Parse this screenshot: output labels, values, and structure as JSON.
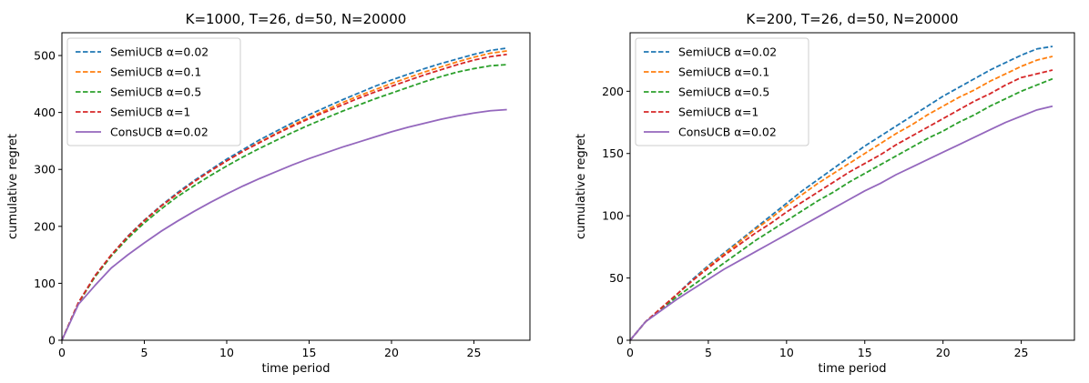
{
  "chart_data": [
    {
      "type": "line",
      "title": "K=1000, T=26, d=50, N=20000",
      "xlabel": "time period",
      "ylabel": "cumulative regret",
      "xlim": [
        0,
        28.4
      ],
      "ylim": [
        0,
        540
      ],
      "xticks": [
        "0",
        "5",
        "10",
        "15",
        "20",
        "25"
      ],
      "yticks": [
        "0",
        "100",
        "200",
        "300",
        "400",
        "500"
      ],
      "legend_position": "top-left",
      "grid": false,
      "x": [
        0,
        1,
        2,
        3,
        4,
        5,
        6,
        7,
        8,
        9,
        10,
        11,
        12,
        13,
        14,
        15,
        16,
        17,
        18,
        19,
        20,
        21,
        22,
        23,
        24,
        25,
        26,
        27
      ],
      "series": [
        {
          "name": "SemiUCB α=0.02",
          "color": "#1f77b4",
          "dash": "dashed",
          "values": [
            0,
            66,
            113,
            150,
            183,
            211,
            236,
            259,
            280,
            299,
            318,
            335,
            352,
            367,
            382,
            396,
            409,
            422,
            434,
            446,
            457,
            467,
            477,
            486,
            494,
            502,
            509,
            513
          ]
        },
        {
          "name": "SemiUCB α=0.1",
          "color": "#ff7f0e",
          "dash": "dashed",
          "values": [
            0,
            66,
            112,
            150,
            182,
            210,
            235,
            257,
            278,
            297,
            315,
            332,
            348,
            363,
            378,
            391,
            404,
            417,
            429,
            440,
            451,
            461,
            471,
            480,
            489,
            497,
            504,
            508
          ]
        },
        {
          "name": "SemiUCB α=0.5",
          "color": "#2ca02c",
          "dash": "dashed",
          "values": [
            0,
            65,
            111,
            148,
            179,
            206,
            230,
            252,
            271,
            289,
            306,
            322,
            337,
            351,
            365,
            378,
            390,
            402,
            413,
            424,
            434,
            444,
            454,
            463,
            471,
            477,
            482,
            484
          ]
        },
        {
          "name": "SemiUCB α=1",
          "color": "#d62728",
          "dash": "dashed",
          "values": [
            0,
            66,
            113,
            150,
            182,
            210,
            235,
            257,
            278,
            297,
            315,
            332,
            347,
            362,
            376,
            389,
            401,
            413,
            425,
            436,
            446,
            456,
            466,
            475,
            484,
            492,
            498,
            502
          ]
        },
        {
          "name": "ConsUCB α=0.02",
          "color": "#9467bd",
          "dash": "solid",
          "values": [
            0,
            63,
            96,
            127,
            150,
            171,
            191,
            209,
            226,
            242,
            257,
            271,
            284,
            296,
            308,
            319,
            329,
            339,
            348,
            357,
            366,
            374,
            381,
            388,
            394,
            399,
            403,
            405
          ]
        }
      ]
    },
    {
      "type": "line",
      "title": "K=200, T=26, d=50, N=20000",
      "xlabel": "time period",
      "ylabel": "cumulative regret",
      "xlim": [
        0,
        28.4
      ],
      "ylim": [
        0,
        247
      ],
      "xticks": [
        "0",
        "5",
        "10",
        "15",
        "20",
        "25"
      ],
      "yticks": [
        "0",
        "50",
        "100",
        "150",
        "200"
      ],
      "legend_position": "top-left",
      "grid": false,
      "x": [
        0,
        1,
        2,
        3,
        4,
        5,
        6,
        7,
        8,
        9,
        10,
        11,
        12,
        13,
        14,
        15,
        16,
        17,
        18,
        19,
        20,
        21,
        22,
        23,
        24,
        25,
        26,
        27
      ],
      "series": [
        {
          "name": "SemiUCB α=0.02",
          "color": "#1f77b4",
          "dash": "dashed",
          "values": [
            0,
            15,
            26,
            37,
            49,
            60,
            70,
            80,
            90,
            100,
            110,
            120,
            129,
            138,
            147,
            156,
            164,
            172,
            180,
            188,
            196,
            203,
            210,
            217,
            223,
            229,
            234,
            236
          ]
        },
        {
          "name": "SemiUCB α=0.1",
          "color": "#ff7f0e",
          "dash": "dashed",
          "values": [
            0,
            15,
            26,
            37,
            48,
            59,
            69,
            79,
            89,
            98,
            108,
            117,
            126,
            134,
            142,
            150,
            158,
            166,
            173,
            181,
            188,
            195,
            201,
            208,
            214,
            220,
            225,
            228
          ]
        },
        {
          "name": "SemiUCB α=0.5",
          "color": "#2ca02c",
          "dash": "dashed",
          "values": [
            0,
            15,
            25,
            35,
            44,
            53,
            62,
            71,
            80,
            88,
            96,
            104,
            112,
            119,
            127,
            134,
            141,
            148,
            155,
            162,
            168,
            175,
            181,
            188,
            194,
            200,
            205,
            210
          ]
        },
        {
          "name": "SemiUCB α=1",
          "color": "#d62728",
          "dash": "dashed",
          "values": [
            0,
            15,
            26,
            37,
            48,
            58,
            68,
            77,
            86,
            94,
            103,
            111,
            119,
            127,
            135,
            142,
            149,
            157,
            164,
            171,
            178,
            185,
            192,
            198,
            205,
            211,
            214,
            217
          ]
        },
        {
          "name": "ConsUCB α=0.02",
          "color": "#9467bd",
          "dash": "solid",
          "values": [
            0,
            15,
            24,
            33,
            41,
            49,
            57,
            64,
            71,
            78,
            85,
            92,
            99,
            106,
            113,
            120,
            126,
            133,
            139,
            145,
            151,
            157,
            163,
            169,
            175,
            180,
            185,
            188
          ]
        }
      ]
    }
  ]
}
